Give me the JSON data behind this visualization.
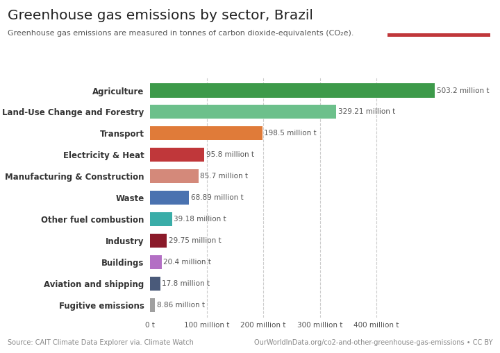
{
  "title": "Greenhouse gas emissions by sector, Brazil",
  "subtitle": "Greenhouse gas emissions are measured in tonnes of carbon dioxide-equivalents (CO₂e).",
  "categories": [
    "Agriculture",
    "Land-Use Change and Forestry",
    "Transport",
    "Electricity & Heat",
    "Manufacturing & Construction",
    "Waste",
    "Other fuel combustion",
    "Industry",
    "Buildings",
    "Aviation and shipping",
    "Fugitive emissions"
  ],
  "values": [
    503.2,
    329.21,
    198.5,
    95.8,
    85.7,
    68.89,
    39.18,
    29.75,
    20.4,
    17.8,
    8.86
  ],
  "labels": [
    "503.2 million t",
    "329.21 million t",
    "198.5 million t",
    "95.8 million t",
    "85.7 million t",
    "68.89 million t",
    "39.18 million t",
    "29.75 million t",
    "20.4 million t",
    "17.8 million t",
    "8.86 million t"
  ],
  "colors": [
    "#3d9a4a",
    "#6cc08b",
    "#e07b39",
    "#c0373a",
    "#d4897a",
    "#4a72b0",
    "#3aada8",
    "#8b1a2a",
    "#b36fc4",
    "#4a5a7a",
    "#a0a0a0"
  ],
  "background_color": "#ffffff",
  "xlim": [
    0,
    530
  ],
  "xticks": [
    0,
    100,
    200,
    300,
    400
  ],
  "xtick_labels": [
    "0 t",
    "100 million t",
    "200 million t",
    "300 million t",
    "400 million t"
  ],
  "footer_left": "Source: CAIT Climate Data Explorer via. Climate Watch",
  "footer_right": "OurWorldInData.org/co2-and-other-greenhouse-gas-emissions • CC BY"
}
